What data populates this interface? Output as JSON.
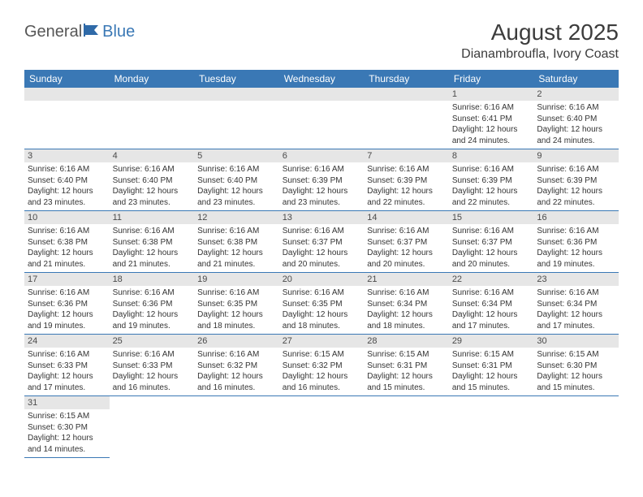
{
  "logo": {
    "part1": "General",
    "part2": "Blue"
  },
  "title": "August 2025",
  "location": "Dianambroufla, Ivory Coast",
  "header_bg": "#3a78b5",
  "day_bg": "#e6e6e6",
  "days": [
    "Sunday",
    "Monday",
    "Tuesday",
    "Wednesday",
    "Thursday",
    "Friday",
    "Saturday"
  ],
  "first_weekday": 5,
  "num_days": 31,
  "cells": [
    {
      "n": 1,
      "sr": "6:16 AM",
      "ss": "6:41 PM",
      "dl": "12 hours and 24 minutes."
    },
    {
      "n": 2,
      "sr": "6:16 AM",
      "ss": "6:40 PM",
      "dl": "12 hours and 24 minutes."
    },
    {
      "n": 3,
      "sr": "6:16 AM",
      "ss": "6:40 PM",
      "dl": "12 hours and 23 minutes."
    },
    {
      "n": 4,
      "sr": "6:16 AM",
      "ss": "6:40 PM",
      "dl": "12 hours and 23 minutes."
    },
    {
      "n": 5,
      "sr": "6:16 AM",
      "ss": "6:40 PM",
      "dl": "12 hours and 23 minutes."
    },
    {
      "n": 6,
      "sr": "6:16 AM",
      "ss": "6:39 PM",
      "dl": "12 hours and 23 minutes."
    },
    {
      "n": 7,
      "sr": "6:16 AM",
      "ss": "6:39 PM",
      "dl": "12 hours and 22 minutes."
    },
    {
      "n": 8,
      "sr": "6:16 AM",
      "ss": "6:39 PM",
      "dl": "12 hours and 22 minutes."
    },
    {
      "n": 9,
      "sr": "6:16 AM",
      "ss": "6:39 PM",
      "dl": "12 hours and 22 minutes."
    },
    {
      "n": 10,
      "sr": "6:16 AM",
      "ss": "6:38 PM",
      "dl": "12 hours and 21 minutes."
    },
    {
      "n": 11,
      "sr": "6:16 AM",
      "ss": "6:38 PM",
      "dl": "12 hours and 21 minutes."
    },
    {
      "n": 12,
      "sr": "6:16 AM",
      "ss": "6:38 PM",
      "dl": "12 hours and 21 minutes."
    },
    {
      "n": 13,
      "sr": "6:16 AM",
      "ss": "6:37 PM",
      "dl": "12 hours and 20 minutes."
    },
    {
      "n": 14,
      "sr": "6:16 AM",
      "ss": "6:37 PM",
      "dl": "12 hours and 20 minutes."
    },
    {
      "n": 15,
      "sr": "6:16 AM",
      "ss": "6:37 PM",
      "dl": "12 hours and 20 minutes."
    },
    {
      "n": 16,
      "sr": "6:16 AM",
      "ss": "6:36 PM",
      "dl": "12 hours and 19 minutes."
    },
    {
      "n": 17,
      "sr": "6:16 AM",
      "ss": "6:36 PM",
      "dl": "12 hours and 19 minutes."
    },
    {
      "n": 18,
      "sr": "6:16 AM",
      "ss": "6:36 PM",
      "dl": "12 hours and 19 minutes."
    },
    {
      "n": 19,
      "sr": "6:16 AM",
      "ss": "6:35 PM",
      "dl": "12 hours and 18 minutes."
    },
    {
      "n": 20,
      "sr": "6:16 AM",
      "ss": "6:35 PM",
      "dl": "12 hours and 18 minutes."
    },
    {
      "n": 21,
      "sr": "6:16 AM",
      "ss": "6:34 PM",
      "dl": "12 hours and 18 minutes."
    },
    {
      "n": 22,
      "sr": "6:16 AM",
      "ss": "6:34 PM",
      "dl": "12 hours and 17 minutes."
    },
    {
      "n": 23,
      "sr": "6:16 AM",
      "ss": "6:34 PM",
      "dl": "12 hours and 17 minutes."
    },
    {
      "n": 24,
      "sr": "6:16 AM",
      "ss": "6:33 PM",
      "dl": "12 hours and 17 minutes."
    },
    {
      "n": 25,
      "sr": "6:16 AM",
      "ss": "6:33 PM",
      "dl": "12 hours and 16 minutes."
    },
    {
      "n": 26,
      "sr": "6:16 AM",
      "ss": "6:32 PM",
      "dl": "12 hours and 16 minutes."
    },
    {
      "n": 27,
      "sr": "6:15 AM",
      "ss": "6:32 PM",
      "dl": "12 hours and 16 minutes."
    },
    {
      "n": 28,
      "sr": "6:15 AM",
      "ss": "6:31 PM",
      "dl": "12 hours and 15 minutes."
    },
    {
      "n": 29,
      "sr": "6:15 AM",
      "ss": "6:31 PM",
      "dl": "12 hours and 15 minutes."
    },
    {
      "n": 30,
      "sr": "6:15 AM",
      "ss": "6:30 PM",
      "dl": "12 hours and 15 minutes."
    },
    {
      "n": 31,
      "sr": "6:15 AM",
      "ss": "6:30 PM",
      "dl": "12 hours and 14 minutes."
    }
  ],
  "labels": {
    "sunrise": "Sunrise:",
    "sunset": "Sunset:",
    "daylight": "Daylight:"
  }
}
